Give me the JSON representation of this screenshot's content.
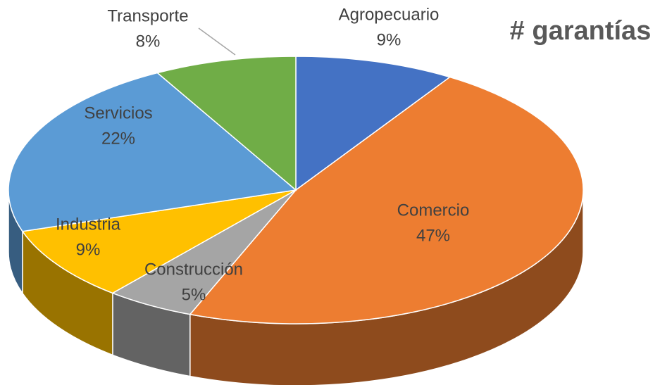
{
  "chart_data": {
    "type": "pie",
    "title": "# garantías",
    "categories": [
      "Agropecuario",
      "Comercio",
      "Construcción",
      "Industria",
      "Servicios",
      "Transporte"
    ],
    "values": [
      9,
      47,
      5,
      9,
      22,
      8
    ],
    "value_labels": [
      "9%",
      "47%",
      "5%",
      "9%",
      "22%",
      "8%"
    ],
    "colors": [
      "#4472c4",
      "#ed7d31",
      "#a5a5a5",
      "#ffc000",
      "#5b9bd5",
      "#70ad47"
    ]
  }
}
